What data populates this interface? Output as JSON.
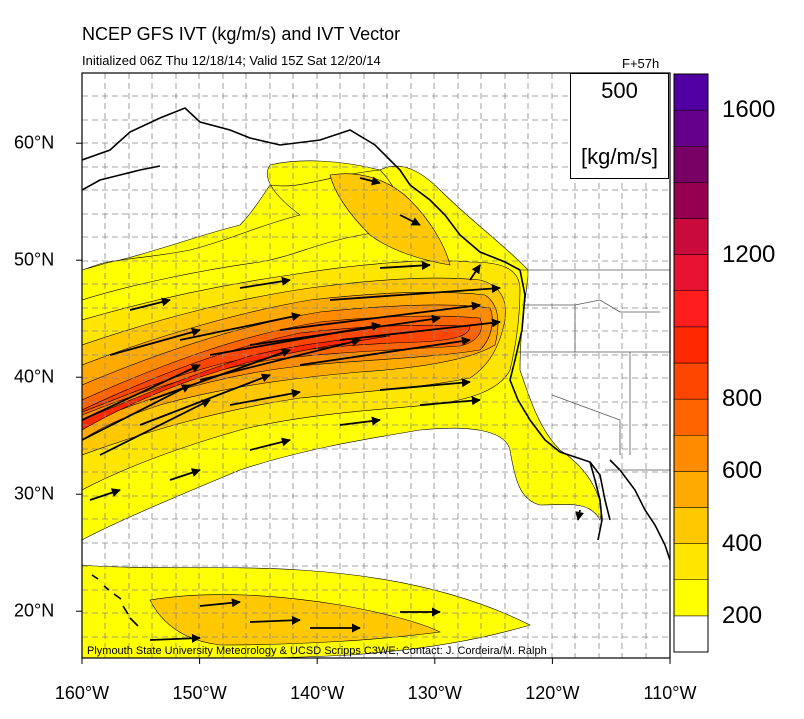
{
  "title": "NCEP GFS IVT (kg/m/s) and IVT Vector",
  "subtitle": "Initialized 06Z Thu 12/18/14; Valid 15Z Sat 12/20/14",
  "forecast_hour": "F+57h",
  "credit": "Plymouth State University Meteorology & UCSD Scripps C3WE; Contact: J. Cordeira/M. Ralph",
  "vector_reference": {
    "magnitude": "500",
    "unit": "[kg/m/s]"
  },
  "lon_ticks": [
    {
      "lon": -160,
      "label": "160°W"
    },
    {
      "lon": -150,
      "label": "150°W"
    },
    {
      "lon": -140,
      "label": "140°W"
    },
    {
      "lon": -130,
      "label": "130°W"
    },
    {
      "lon": -120,
      "label": "120°W"
    },
    {
      "lon": -110,
      "label": "110°W"
    }
  ],
  "lat_ticks": [
    {
      "lat": 20,
      "label": "20°N"
    },
    {
      "lat": 30,
      "label": "30°N"
    },
    {
      "lat": 40,
      "label": "40°N"
    },
    {
      "lat": 50,
      "label": "50°N"
    },
    {
      "lat": 60,
      "label": "60°N"
    }
  ],
  "colorbar": {
    "levels": [
      200,
      300,
      400,
      500,
      600,
      700,
      800,
      900,
      1000,
      1100,
      1200,
      1300,
      1400,
      1500,
      1600,
      1700
    ],
    "labels": [
      {
        "value": 200,
        "label": "200"
      },
      {
        "value": 400,
        "label": "400"
      },
      {
        "value": 600,
        "label": "600"
      },
      {
        "value": 800,
        "label": "800"
      },
      {
        "value": 1200,
        "label": "1200"
      },
      {
        "value": 1600,
        "label": "1600"
      }
    ],
    "colors": [
      "#ffffff",
      "#ffff00",
      "#ffe600",
      "#ffc800",
      "#ffaa00",
      "#ff8c00",
      "#ff6400",
      "#ff4600",
      "#ff2800",
      "#ff1e1e",
      "#e61432",
      "#c80a3c",
      "#960050",
      "#780064",
      "#64008c",
      "#5000a0"
    ]
  },
  "chart_data": {
    "type": "heatmap",
    "variable": "IVT",
    "units": "kg/m/s",
    "lon_range": [
      -160,
      -110
    ],
    "lat_range": [
      16,
      66
    ],
    "features": [
      {
        "feature": "atmospheric river core",
        "ivt_peak": 1000,
        "axis": [
          [
            -160,
            34
          ],
          [
            -150,
            39
          ],
          [
            -140,
            42
          ],
          [
            -130,
            44
          ],
          [
            -125,
            45
          ]
        ]
      },
      {
        "feature": "subtropical IVT band",
        "ivt_peak": 400,
        "axis": [
          [
            -160,
            19
          ],
          [
            -145,
            20
          ],
          [
            -130,
            19
          ]
        ]
      }
    ]
  }
}
